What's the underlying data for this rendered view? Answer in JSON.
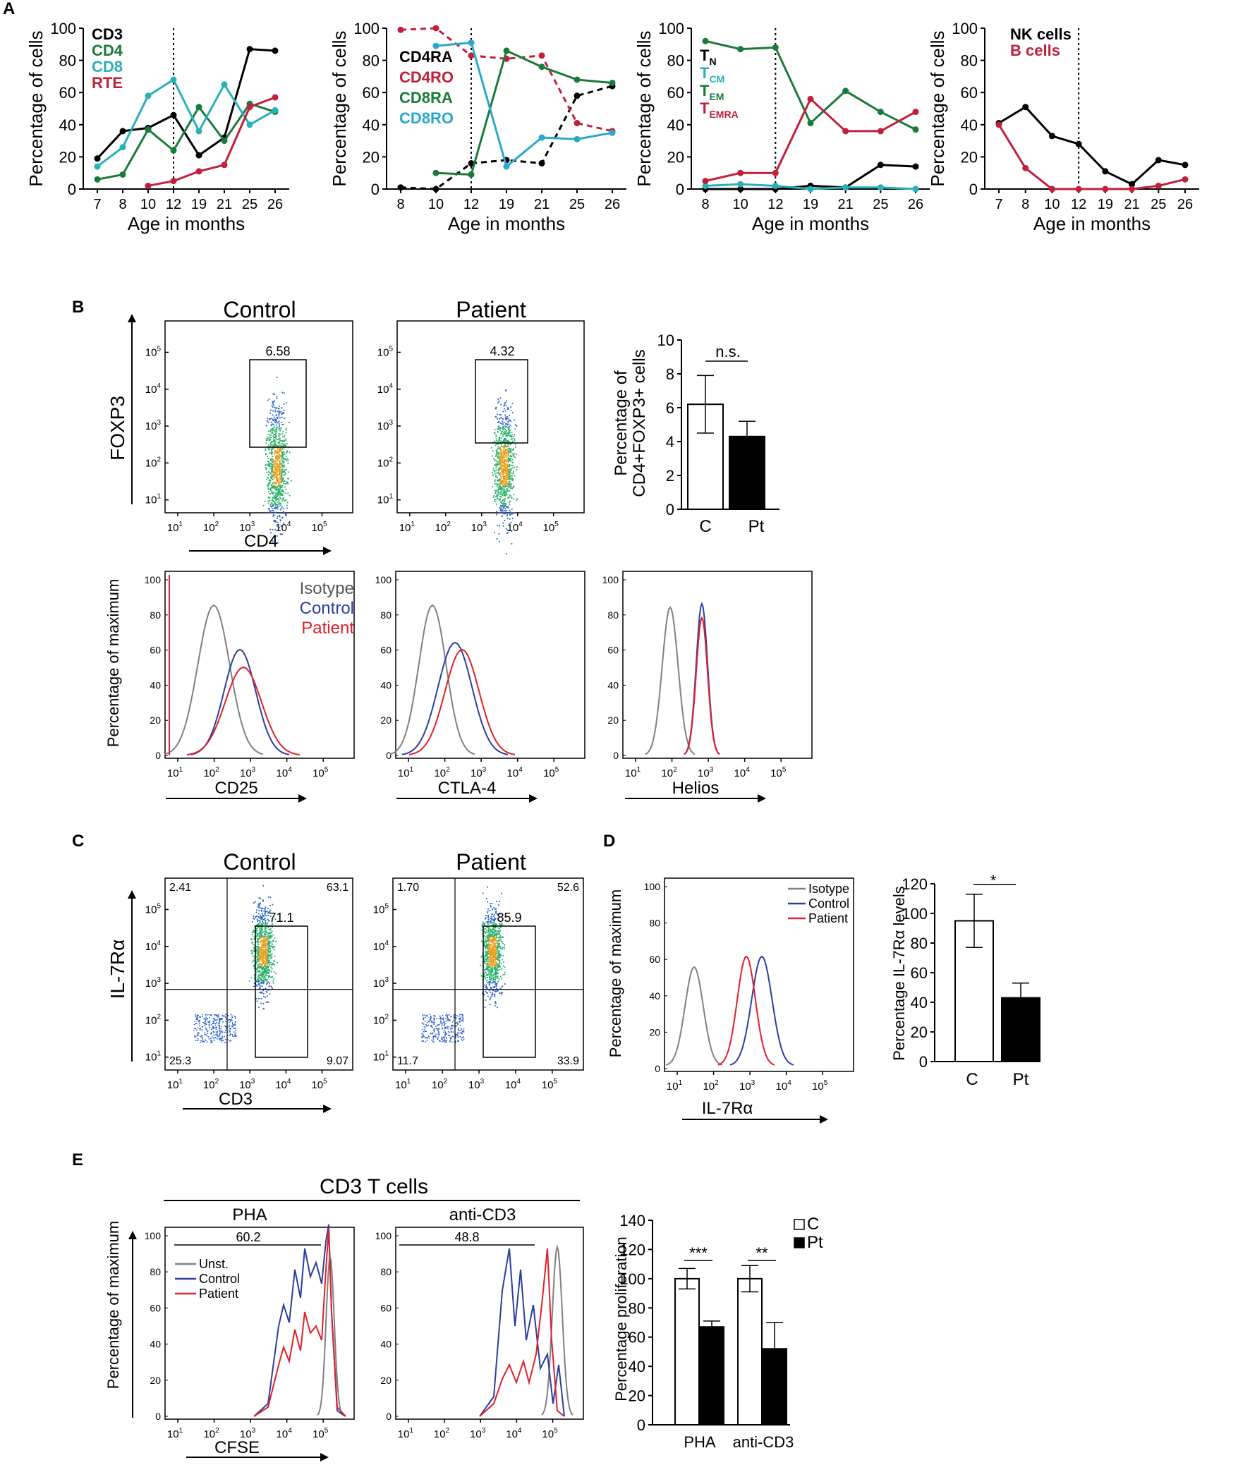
{
  "panel_letters": {
    "A": "A",
    "B": "B",
    "C": "C",
    "D": "D",
    "E": "E"
  },
  "colors": {
    "black": "#000000",
    "green": "#1a7a3a",
    "cyan": "#2ab0b8",
    "red": "#c0203a",
    "blue": "#2b3ea0",
    "gray": "#808080",
    "lightblue": "#2aa8cc"
  },
  "chart_data": [
    {
      "id": "A1",
      "type": "line",
      "ylabel": "Percentage of cells",
      "xlabel": "Age in months",
      "categories": [
        "7",
        "8",
        "10",
        "12",
        "19",
        "21",
        "25",
        "26"
      ],
      "ylim": [
        0,
        100
      ],
      "yticks": [
        "0",
        "20",
        "40",
        "60",
        "80",
        "100"
      ],
      "vline_at": "12",
      "series": [
        {
          "name": "CD3",
          "color": "#000000",
          "values": [
            19,
            36,
            38,
            46,
            21,
            32,
            87,
            86
          ]
        },
        {
          "name": "CD4",
          "color": "#1a7a3a",
          "values": [
            6,
            9,
            37,
            24,
            51,
            30,
            53,
            48
          ]
        },
        {
          "name": "CD8",
          "color": "#2ab0b8",
          "values": [
            14,
            26,
            58,
            68,
            36,
            65,
            40,
            49
          ]
        },
        {
          "name": "RTE",
          "color": "#c0203a",
          "values": [
            null,
            null,
            2,
            5,
            11,
            15,
            51,
            57
          ]
        }
      ]
    },
    {
      "id": "A2",
      "type": "line",
      "ylabel": "Percentage of cells",
      "xlabel": "Age in months",
      "categories": [
        "8",
        "10",
        "12",
        "19",
        "21",
        "25",
        "26"
      ],
      "ylim": [
        0,
        100
      ],
      "yticks": [
        "0",
        "20",
        "40",
        "60",
        "80",
        "100"
      ],
      "vline_at": "12",
      "series": [
        {
          "name": "CD4RA",
          "color": "#000000",
          "dashed": true,
          "values": [
            1,
            0,
            16,
            18,
            16,
            58,
            64
          ]
        },
        {
          "name": "CD4RO",
          "color": "#c0203a",
          "dashed": true,
          "values": [
            99,
            100,
            83,
            81,
            83,
            41,
            36
          ]
        },
        {
          "name": "CD8RA",
          "color": "#1a7a3a",
          "values": [
            null,
            10,
            9,
            86,
            76,
            68,
            66
          ]
        },
        {
          "name": "CD8RO",
          "color": "#2aa8cc",
          "values": [
            null,
            89,
            91,
            14,
            32,
            31,
            35
          ]
        }
      ]
    },
    {
      "id": "A3",
      "type": "line",
      "ylabel": "Percentage of cells",
      "xlabel": "Age in months",
      "categories": [
        "8",
        "10",
        "12",
        "19",
        "21",
        "25",
        "26"
      ],
      "ylim": [
        0,
        100
      ],
      "yticks": [
        "0",
        "20",
        "40",
        "60",
        "80",
        "100"
      ],
      "vline_at": "12",
      "series": [
        {
          "name": "T",
          "sub": "N",
          "color": "#000000",
          "values": [
            0,
            0,
            0,
            2,
            1,
            15,
            14
          ]
        },
        {
          "name": "T",
          "sub": "CM",
          "color": "#2ab0b8",
          "values": [
            2,
            3,
            2,
            0,
            1,
            1,
            0
          ]
        },
        {
          "name": "T",
          "sub": "EM",
          "color": "#1a7a3a",
          "values": [
            92,
            87,
            88,
            41,
            61,
            48,
            37
          ]
        },
        {
          "name": "T",
          "sub": "EMRA",
          "color": "#c0203a",
          "values": [
            5,
            10,
            10,
            56,
            36,
            36,
            48
          ]
        }
      ]
    },
    {
      "id": "A4",
      "type": "line",
      "ylabel": "Percentage of cells",
      "xlabel": "Age in months",
      "categories": [
        "7",
        "8",
        "10",
        "12",
        "19",
        "21",
        "25",
        "26"
      ],
      "ylim": [
        0,
        100
      ],
      "yticks": [
        "0",
        "20",
        "40",
        "60",
        "80",
        "100"
      ],
      "vline_at": "12",
      "series": [
        {
          "name": "NK cells",
          "color": "#000000",
          "values": [
            41,
            51,
            33,
            28,
            11,
            3,
            18,
            15
          ]
        },
        {
          "name": "B cells",
          "color": "#c0203a",
          "values": [
            40,
            13,
            0,
            0,
            0,
            0,
            2,
            6
          ]
        }
      ]
    },
    {
      "id": "B_bar",
      "type": "bar",
      "ylabel": "Percentage of CD4+FOXP3+ cells",
      "categories": [
        "C",
        "Pt"
      ],
      "values": [
        6.2,
        4.3
      ],
      "errors": [
        1.7,
        0.9
      ],
      "ylim": [
        0,
        10
      ],
      "yticks": [
        "0",
        "2",
        "4",
        "6",
        "8",
        "10"
      ],
      "significance": "n.s."
    },
    {
      "id": "D_bar",
      "type": "bar",
      "ylabel": "Percentage IL-7Rα levels",
      "categories": [
        "C",
        "Pt"
      ],
      "values": [
        95,
        43
      ],
      "errors": [
        18,
        10
      ],
      "ylim": [
        0,
        120
      ],
      "yticks": [
        "0",
        "20",
        "40",
        "60",
        "80",
        "100",
        "120"
      ],
      "significance": "*"
    },
    {
      "id": "E_bar",
      "type": "bar",
      "ylabel": "Percentage proliferation",
      "categories": [
        "PHA",
        "anti-CD3"
      ],
      "series": [
        {
          "name": "C",
          "values": [
            100,
            100
          ],
          "errors": [
            7,
            9
          ]
        },
        {
          "name": "Pt",
          "values": [
            67,
            52
          ],
          "errors": [
            4,
            18
          ]
        }
      ],
      "ylim": [
        0,
        140
      ],
      "yticks": [
        "0",
        "20",
        "40",
        "60",
        "80",
        "100",
        "120",
        "140"
      ],
      "significance": [
        "***",
        "**"
      ]
    }
  ],
  "panelB": {
    "control_title": "Control",
    "patient_title": "Patient",
    "flow_ylabel": "FOXP3",
    "flow_xlabel": "CD4",
    "gate_control": "6.58",
    "gate_patient": "4.32",
    "y_ticks": [
      "10",
      "10",
      "10",
      "10",
      "10"
    ],
    "tick_exps": [
      "1",
      "2",
      "3",
      "4",
      "5"
    ],
    "hist_ylabel": "Percentage of maximum",
    "hist_yticks": [
      "0",
      "20",
      "40",
      "60",
      "80",
      "100"
    ],
    "hist_xlabels": [
      "CD25",
      "CTLA-4",
      "Helios"
    ],
    "legend": [
      "Isotype",
      "Control",
      "Patient"
    ]
  },
  "panelC": {
    "control_title": "Control",
    "patient_title": "Patient",
    "ylabel": "IL-7Rα",
    "xlabel": "CD3",
    "control_quadrants": {
      "ul": "2.41",
      "ur": "63.1",
      "ll": "25.3",
      "lr": "9.07",
      "gate": "71.1"
    },
    "patient_quadrants": {
      "ul": "1.70",
      "ur": "52.6",
      "ll": "11.7",
      "lr": "33.9",
      "gate": "85.9"
    }
  },
  "panelD": {
    "ylabel": "Percentage of maximum",
    "xlabel": "IL-7Rα",
    "legend": [
      "Isotype",
      "Control",
      "Patient"
    ]
  },
  "panelE": {
    "title": "CD3 T cells",
    "sub1": "PHA",
    "sub2": "anti-CD3",
    "gate1": "60.2",
    "gate2": "48.8",
    "ylabel": "Percentage of maximum",
    "xlabel": "CFSE",
    "legend": [
      "Unst.",
      "Control",
      "Patient"
    ],
    "bar_legend": [
      "C",
      "Pt"
    ]
  }
}
